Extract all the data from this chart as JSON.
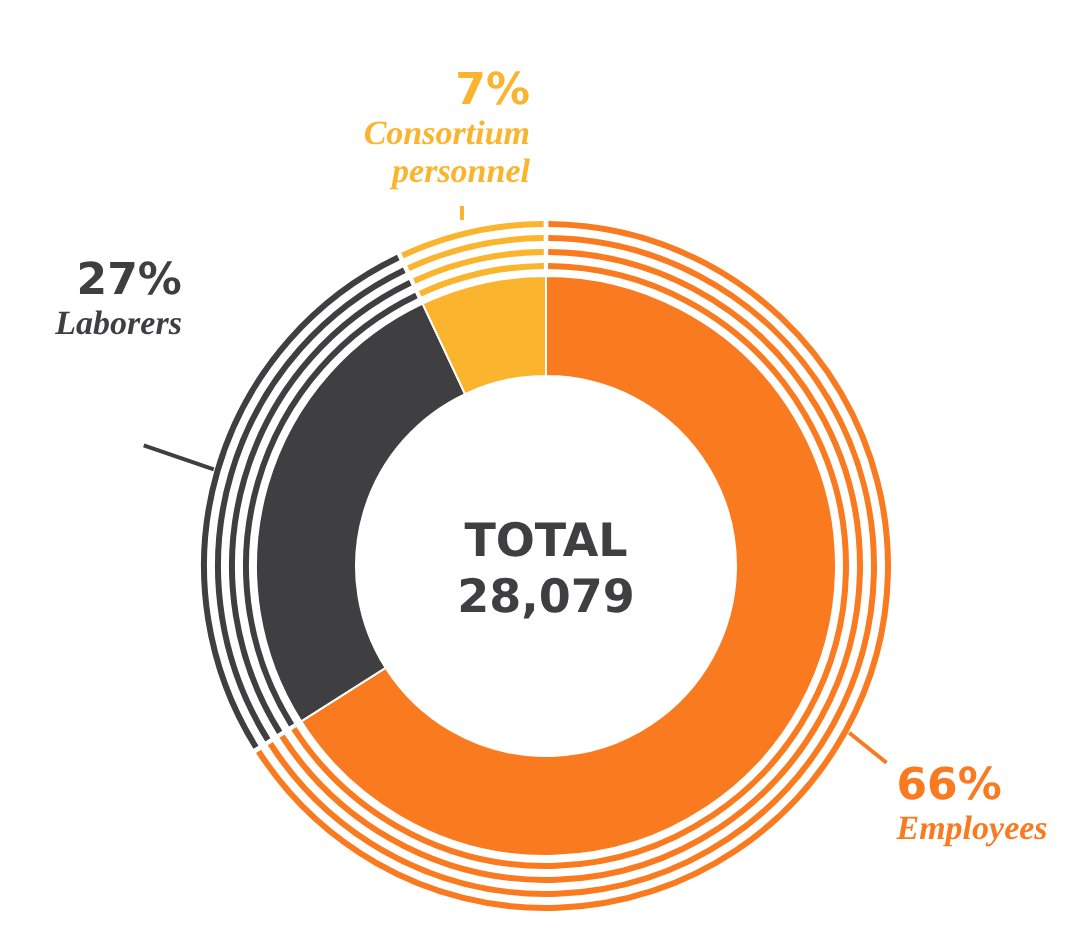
{
  "chart_data": {
    "type": "donut",
    "categories": [
      "Employees",
      "Laborers",
      "Consortium personnel"
    ],
    "values": [
      66,
      27,
      7
    ],
    "value_labels": [
      "66%",
      "27%",
      "7%"
    ],
    "colors": [
      "#f97a1f",
      "#3f3f41",
      "#fbb42d"
    ],
    "annotations": [
      "TOTAL",
      "28,079"
    ]
  }
}
